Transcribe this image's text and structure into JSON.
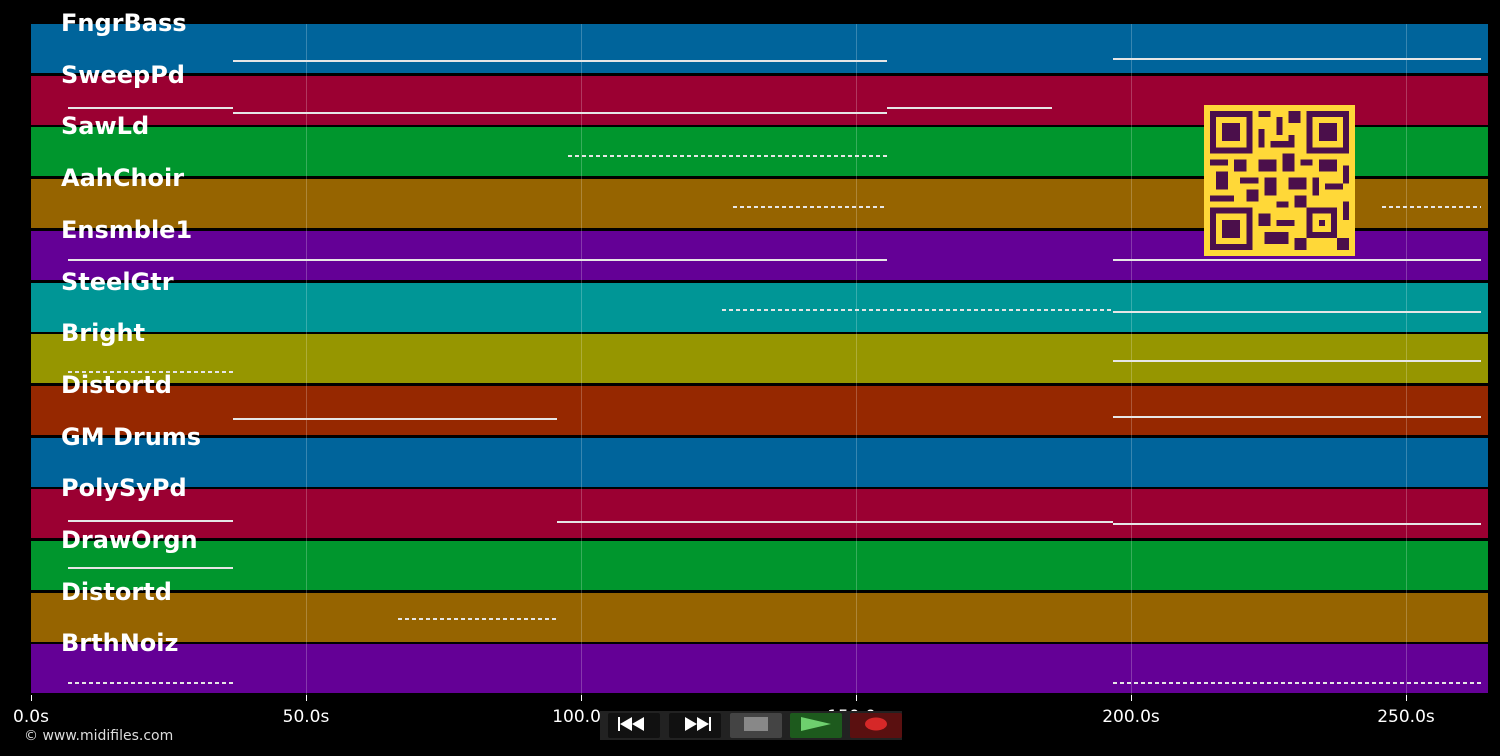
{
  "tracks": [
    {
      "name": "FngrBass",
      "color": "#00649b"
    },
    {
      "name": "SweepPd",
      "color": "#9b0032"
    },
    {
      "name": "SawLd",
      "color": "#00962d"
    },
    {
      "name": "AahChoir",
      "color": "#966400"
    },
    {
      "name": "Ensmble1",
      "color": "#640096"
    },
    {
      "name": "SteelGtr",
      "color": "#009696"
    },
    {
      "name": "Bright",
      "color": "#969600"
    },
    {
      "name": "Distortd",
      "color": "#962800"
    },
    {
      "name": "GM Drums",
      "color": "#00649b"
    },
    {
      "name": "PolySyPd",
      "color": "#9b0032"
    },
    {
      "name": "DrawOrgn",
      "color": "#00962d"
    },
    {
      "name": "Distortd",
      "color": "#966400"
    },
    {
      "name": "BrthNoiz",
      "color": "#640096"
    }
  ],
  "axis": {
    "ticks": [
      "0.0s",
      "50.0s",
      "100.0s",
      "150.0s",
      "200.0s",
      "250.0s"
    ]
  },
  "footer": {
    "copyright": "© www.midifiles.com"
  },
  "transport": {
    "buttons": [
      {
        "name": "rewind-button",
        "icon": "rewind-icon"
      },
      {
        "name": "fast-forward-button",
        "icon": "fast-forward-icon"
      },
      {
        "name": "stop-button",
        "icon": "stop-icon"
      },
      {
        "name": "play-button",
        "icon": "play-icon"
      },
      {
        "name": "record-button",
        "icon": "record-icon"
      }
    ]
  },
  "overlay": {
    "icon": "qr-code-icon"
  }
}
